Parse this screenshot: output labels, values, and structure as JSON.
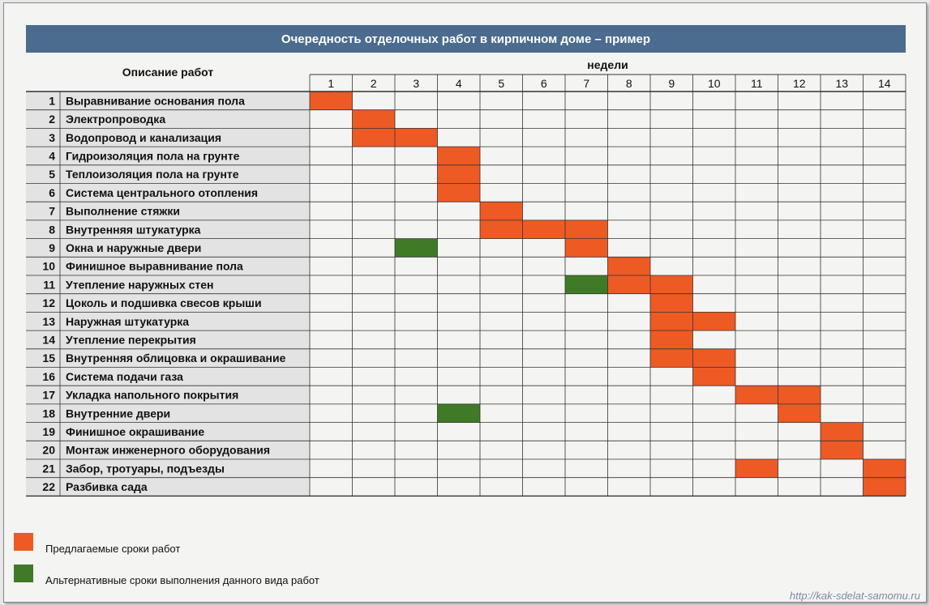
{
  "title": "Очередность отделочных работ в кирпичном доме – пример",
  "desc_header": "Описание работ",
  "weeks_label": "недели",
  "colors": {
    "proposed": "#ee5a24",
    "alternative": "#3f7b27",
    "header": "#4b6b8f",
    "grid": "#333333",
    "shade": "#e3e3e3"
  },
  "legend": {
    "proposed": "Предлагаемые сроки работ",
    "alternative": "Альтернативные сроки выполнения данного вида работ"
  },
  "watermark": "http://kak-sdelat-samomu.ru",
  "chart_data": {
    "type": "gantt",
    "title": "Очередность отделочных работ в кирпичном доме – пример",
    "x_label": "недели",
    "weeks": [
      1,
      2,
      3,
      4,
      5,
      6,
      7,
      8,
      9,
      10,
      11,
      12,
      13,
      14
    ],
    "tasks": [
      {
        "num": 1,
        "name": "Выравнивание основания пола",
        "proposed": [
          1
        ],
        "alternative": []
      },
      {
        "num": 2,
        "name": "Электропроводка",
        "proposed": [
          2
        ],
        "alternative": []
      },
      {
        "num": 3,
        "name": "Водопровод и канализация",
        "proposed": [
          2,
          3
        ],
        "alternative": []
      },
      {
        "num": 4,
        "name": "Гидроизоляция пола на грунте",
        "proposed": [
          4
        ],
        "alternative": []
      },
      {
        "num": 5,
        "name": "Теплоизоляция пола на грунте",
        "proposed": [
          4
        ],
        "alternative": []
      },
      {
        "num": 6,
        "name": "Система центрального отопления",
        "proposed": [
          4
        ],
        "alternative": []
      },
      {
        "num": 7,
        "name": "Выполнение стяжки",
        "proposed": [
          5
        ],
        "alternative": []
      },
      {
        "num": 8,
        "name": "Внутренняя штукатурка",
        "proposed": [
          5,
          6,
          7
        ],
        "alternative": []
      },
      {
        "num": 9,
        "name": "Окна и наружные двери",
        "proposed": [
          7
        ],
        "alternative": [
          3
        ]
      },
      {
        "num": 10,
        "name": "Финишное выравнивание пола",
        "proposed": [
          8
        ],
        "alternative": []
      },
      {
        "num": 11,
        "name": "Утепление наружных стен",
        "proposed": [
          8,
          9
        ],
        "alternative": [
          7
        ]
      },
      {
        "num": 12,
        "name": "Цоколь и подшивка свесов крыши",
        "proposed": [
          9
        ],
        "alternative": []
      },
      {
        "num": 13,
        "name": "Наружная штукатурка",
        "proposed": [
          9,
          10
        ],
        "alternative": []
      },
      {
        "num": 14,
        "name": "Утепление перекрытия",
        "proposed": [
          9
        ],
        "alternative": []
      },
      {
        "num": 15,
        "name": "Внутренняя облицовка и окрашивание",
        "proposed": [
          9,
          10
        ],
        "alternative": []
      },
      {
        "num": 16,
        "name": "Система подачи газа",
        "proposed": [
          10
        ],
        "alternative": []
      },
      {
        "num": 17,
        "name": "Укладка напольного покрытия",
        "proposed": [
          11,
          12
        ],
        "alternative": []
      },
      {
        "num": 18,
        "name": "Внутренние двери",
        "proposed": [
          12
        ],
        "alternative": [
          4
        ]
      },
      {
        "num": 19,
        "name": "Финишное окрашивание",
        "proposed": [
          13
        ],
        "alternative": []
      },
      {
        "num": 20,
        "name": "Монтаж инженерного оборудования",
        "proposed": [
          13
        ],
        "alternative": []
      },
      {
        "num": 21,
        "name": "Забор, тротуары, подъезды",
        "proposed": [
          11,
          14
        ],
        "alternative": []
      },
      {
        "num": 22,
        "name": "Разбивка сада",
        "proposed": [
          14
        ],
        "alternative": []
      }
    ]
  }
}
